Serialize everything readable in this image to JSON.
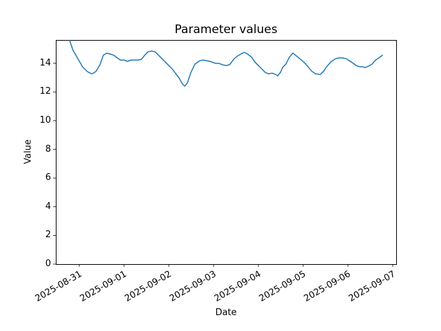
{
  "figure": {
    "background": "#ffffff",
    "text_color": "#000000"
  },
  "chart_data": {
    "type": "line",
    "title": "Parameter values",
    "xlabel": "Date",
    "ylabel": "Value",
    "grid": false,
    "legend": "none",
    "line": {
      "color": "#1f77b4",
      "width": 1.5
    },
    "axes": {
      "spine_color": "#000000",
      "ylim": [
        0,
        15.62
      ],
      "xlim_days": [
        -0.523,
        7.077
      ],
      "x_origin": "2025-08-31T00:00",
      "x_tick_rotation_deg": 30
    },
    "y_ticks": [
      0,
      2,
      4,
      6,
      8,
      10,
      12,
      14
    ],
    "x_ticks": [
      {
        "day": 0,
        "label": "2025-08-31"
      },
      {
        "day": 1,
        "label": "2025-09-01"
      },
      {
        "day": 2,
        "label": "2025-09-02"
      },
      {
        "day": 3,
        "label": "2025-09-03"
      },
      {
        "day": 4,
        "label": "2025-09-04"
      },
      {
        "day": 5,
        "label": "2025-09-05"
      },
      {
        "day": 6,
        "label": "2025-09-06"
      },
      {
        "day": 7,
        "label": "2025-09-07"
      }
    ],
    "points": [
      [
        "2025-08-30T18:50",
        15.6
      ],
      [
        "2025-08-30T20:40",
        14.9
      ],
      [
        "2025-08-30T23:15",
        14.32
      ],
      [
        "2025-08-31T01:50",
        13.74
      ],
      [
        "2025-08-31T04:25",
        13.41
      ],
      [
        "2025-08-31T06:40",
        13.26
      ],
      [
        "2025-08-31T08:50",
        13.41
      ],
      [
        "2025-08-31T11:05",
        13.89
      ],
      [
        "2025-08-31T12:55",
        14.56
      ],
      [
        "2025-08-31T14:45",
        14.7
      ],
      [
        "2025-08-31T16:35",
        14.64
      ],
      [
        "2025-08-31T18:30",
        14.56
      ],
      [
        "2025-08-31T20:20",
        14.37
      ],
      [
        "2025-08-31T22:10",
        14.22
      ],
      [
        "2025-09-01T00:00",
        14.22
      ],
      [
        "2025-09-01T01:50",
        14.13
      ],
      [
        "2025-09-01T03:40",
        14.22
      ],
      [
        "2025-09-01T07:25",
        14.22
      ],
      [
        "2025-09-01T09:15",
        14.27
      ],
      [
        "2025-09-01T11:05",
        14.56
      ],
      [
        "2025-09-01T12:55",
        14.8
      ],
      [
        "2025-09-01T14:45",
        14.85
      ],
      [
        "2025-09-01T16:35",
        14.8
      ],
      [
        "2025-09-01T18:30",
        14.56
      ],
      [
        "2025-09-01T22:10",
        14.08
      ],
      [
        "2025-09-02T01:50",
        13.6
      ],
      [
        "2025-09-02T05:30",
        12.97
      ],
      [
        "2025-09-02T07:25",
        12.54
      ],
      [
        "2025-09-02T08:30",
        12.4
      ],
      [
        "2025-09-02T10:00",
        12.64
      ],
      [
        "2025-09-02T11:50",
        13.36
      ],
      [
        "2025-09-02T14:00",
        13.94
      ],
      [
        "2025-09-02T16:35",
        14.18
      ],
      [
        "2025-09-02T18:30",
        14.22
      ],
      [
        "2025-09-02T20:20",
        14.18
      ],
      [
        "2025-09-02T22:10",
        14.13
      ],
      [
        "2025-09-03T00:00",
        14.04
      ],
      [
        "2025-09-03T01:05",
        13.99
      ],
      [
        "2025-09-03T02:55",
        13.99
      ],
      [
        "2025-09-03T04:50",
        13.89
      ],
      [
        "2025-09-03T06:40",
        13.84
      ],
      [
        "2025-09-03T08:30",
        13.89
      ],
      [
        "2025-09-03T11:05",
        14.32
      ],
      [
        "2025-09-03T12:55",
        14.51
      ],
      [
        "2025-09-03T14:45",
        14.66
      ],
      [
        "2025-09-03T16:35",
        14.76
      ],
      [
        "2025-09-03T18:30",
        14.61
      ],
      [
        "2025-09-03T20:20",
        14.42
      ],
      [
        "2025-09-03T22:10",
        14.08
      ],
      [
        "2025-09-04T00:00",
        13.84
      ],
      [
        "2025-09-04T01:50",
        13.6
      ],
      [
        "2025-09-04T03:40",
        13.36
      ],
      [
        "2025-09-04T05:30",
        13.26
      ],
      [
        "2025-09-04T07:25",
        13.31
      ],
      [
        "2025-09-04T09:15",
        13.22
      ],
      [
        "2025-09-04T10:20",
        13.12
      ],
      [
        "2025-09-04T11:50",
        13.36
      ],
      [
        "2025-09-04T12:55",
        13.7
      ],
      [
        "2025-09-04T14:45",
        13.94
      ],
      [
        "2025-09-04T16:35",
        14.42
      ],
      [
        "2025-09-04T18:30",
        14.71
      ],
      [
        "2025-09-04T20:20",
        14.51
      ],
      [
        "2025-09-04T22:10",
        14.32
      ],
      [
        "2025-09-05T01:05",
        13.99
      ],
      [
        "2025-09-05T02:55",
        13.7
      ],
      [
        "2025-09-05T04:25",
        13.46
      ],
      [
        "2025-09-05T06:40",
        13.26
      ],
      [
        "2025-09-05T09:15",
        13.22
      ],
      [
        "2025-09-05T11:05",
        13.46
      ],
      [
        "2025-09-05T12:10",
        13.7
      ],
      [
        "2025-09-05T14:45",
        14.08
      ],
      [
        "2025-09-05T17:20",
        14.32
      ],
      [
        "2025-09-05T19:10",
        14.37
      ],
      [
        "2025-09-05T21:05",
        14.37
      ],
      [
        "2025-09-05T22:55",
        14.32
      ],
      [
        "2025-09-06T01:50",
        14.08
      ],
      [
        "2025-09-06T04:25",
        13.84
      ],
      [
        "2025-09-06T06:15",
        13.75
      ],
      [
        "2025-09-06T08:05",
        13.75
      ],
      [
        "2025-09-06T09:15",
        13.7
      ],
      [
        "2025-09-06T11:05",
        13.8
      ],
      [
        "2025-09-06T12:55",
        13.94
      ],
      [
        "2025-09-06T14:45",
        14.22
      ],
      [
        "2025-09-06T16:35",
        14.37
      ],
      [
        "2025-09-06T18:30",
        14.56
      ]
    ]
  }
}
